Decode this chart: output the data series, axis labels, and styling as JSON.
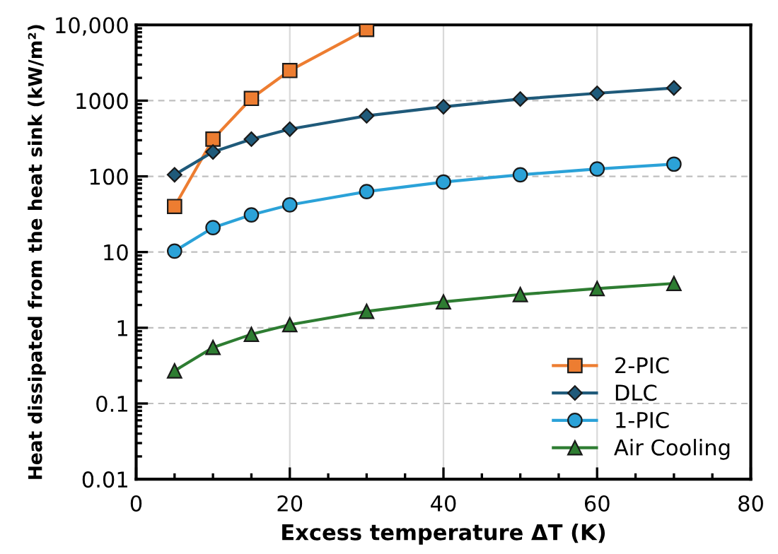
{
  "chart_data": {
    "type": "line",
    "xlabel": "Excess temperature ΔT (K)",
    "ylabel": "Heat dissipated from the heat sink (kW/m²)",
    "log": "y",
    "xlim": [
      0,
      80
    ],
    "xticks": [
      0,
      20,
      40,
      60,
      80
    ],
    "ylim": [
      0.01,
      10000
    ],
    "yticks": [
      0.01,
      0.1,
      1,
      10,
      100,
      1000,
      {
        "value": 10000,
        "label": "10,000"
      }
    ],
    "grid": true,
    "legend": "bottom right",
    "series": [
      {
        "name": "2-PIC",
        "color": "#ed7d31",
        "marker": "square",
        "x": [
          5,
          10,
          15,
          20,
          30
        ],
        "values": [
          40,
          310,
          1070,
          2500,
          8700
        ]
      },
      {
        "name": "DLC",
        "color": "#1f5a7a",
        "marker": "diamond",
        "x": [
          5,
          10,
          15,
          20,
          30,
          40,
          50,
          60,
          70
        ],
        "values": [
          105,
          210,
          310,
          420,
          630,
          830,
          1050,
          1250,
          1470
        ]
      },
      {
        "name": "1-PIC",
        "color": "#2ba2d8",
        "marker": "circle",
        "x": [
          5,
          10,
          15,
          20,
          30,
          40,
          50,
          60,
          70
        ],
        "values": [
          10.3,
          21,
          31,
          42,
          63,
          84,
          105,
          125,
          145
        ]
      },
      {
        "name": "Air Cooling",
        "color": "#2e7d32",
        "marker": "triangle",
        "x": [
          5,
          10,
          15,
          20,
          30,
          40,
          50,
          60,
          70
        ],
        "values": [
          0.27,
          0.55,
          0.82,
          1.1,
          1.65,
          2.2,
          2.75,
          3.3,
          3.85
        ]
      }
    ]
  }
}
